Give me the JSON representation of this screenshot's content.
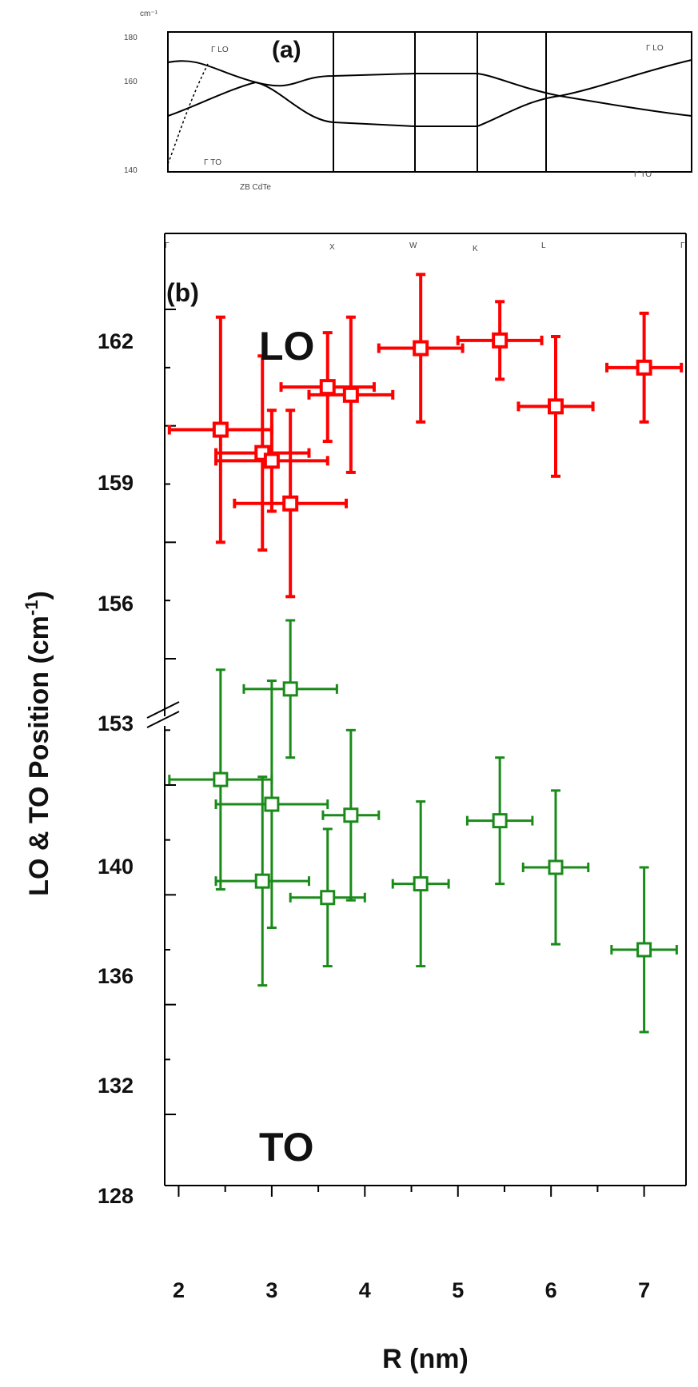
{
  "colors": {
    "lo": "#ff0000",
    "to": "#1a8a1a",
    "axis": "#000000"
  },
  "panel_a": {
    "label": "(a)",
    "unit": "cm⁻¹",
    "yticks": [
      "180",
      "160",
      "140"
    ],
    "top_left_label": "Γ LO",
    "top_right_label": "Γ LO",
    "bottom_left_label": "Γ TO",
    "bottom_right_label": "Γ TO",
    "material": "ZB CdTe",
    "kpoints": [
      "Γ",
      "X",
      "W",
      "K",
      "L",
      "Γ"
    ]
  },
  "chart_data": {
    "type": "scatter",
    "panel_label": "(b)",
    "xlabel": "R (nm)",
    "ylabel": "LO & TO Position (cm-1)",
    "ylabel_main": "LO & TO Position (cm",
    "ylabel_sup": "-1",
    "ylabel_close": ")",
    "xlim": [
      1.85,
      7.45
    ],
    "xticks": [
      "2",
      "3",
      "4",
      "5",
      "6",
      "7"
    ],
    "yaxis_break": true,
    "yticks_upper": [
      "162",
      "159",
      "156",
      "153"
    ],
    "yticks_lower": [
      "140",
      "136",
      "132",
      "128"
    ],
    "region_labels": {
      "lo": "LO",
      "to": "TO"
    },
    "series": [
      {
        "name": "LO",
        "points": [
          {
            "x": 2.45,
            "y": 158.9,
            "xerr": 0.55,
            "yerr": 2.9
          },
          {
            "x": 2.9,
            "y": 158.3,
            "xerr": 0.5,
            "yerr": 2.5
          },
          {
            "x": 3.0,
            "y": 158.1,
            "xerr": 0.6,
            "yerr": 1.3
          },
          {
            "x": 3.2,
            "y": 157.0,
            "xerr": 0.6,
            "yerr": 2.4
          },
          {
            "x": 3.6,
            "y": 160.0,
            "xerr": 0.5,
            "yerr": 1.4
          },
          {
            "x": 3.85,
            "y": 159.8,
            "xerr": 0.45,
            "yerr": 2.0
          },
          {
            "x": 4.6,
            "y": 161.0,
            "xerr": 0.45,
            "yerr": 1.9
          },
          {
            "x": 5.45,
            "y": 161.2,
            "xerr": 0.45,
            "yerr": 1.0
          },
          {
            "x": 6.05,
            "y": 159.5,
            "xerr": 0.4,
            "yerr": 1.8
          },
          {
            "x": 7.0,
            "y": 160.5,
            "xerr": 0.4,
            "yerr": 1.4
          }
        ]
      },
      {
        "name": "TO",
        "points": [
          {
            "x": 2.45,
            "y": 140.2,
            "xerr": 0.55,
            "yerr": 4.0
          },
          {
            "x": 2.9,
            "y": 136.5,
            "xerr": 0.5,
            "yerr": 3.8
          },
          {
            "x": 3.0,
            "y": 139.3,
            "xerr": 0.6,
            "yerr": 4.5
          },
          {
            "x": 3.2,
            "y": 143.5,
            "xerr": 0.5,
            "yerr": 2.5
          },
          {
            "x": 3.6,
            "y": 135.9,
            "xerr": 0.4,
            "yerr": 2.5
          },
          {
            "x": 3.85,
            "y": 138.9,
            "xerr": 0.3,
            "yerr": 3.1
          },
          {
            "x": 4.6,
            "y": 136.4,
            "xerr": 0.3,
            "yerr": 3.0
          },
          {
            "x": 5.45,
            "y": 138.7,
            "xerr": 0.35,
            "yerr": 2.3
          },
          {
            "x": 6.05,
            "y": 137.0,
            "xerr": 0.35,
            "yerr": 2.8
          },
          {
            "x": 7.0,
            "y": 134.0,
            "xerr": 0.35,
            "yerr": 3.0
          }
        ]
      }
    ]
  }
}
